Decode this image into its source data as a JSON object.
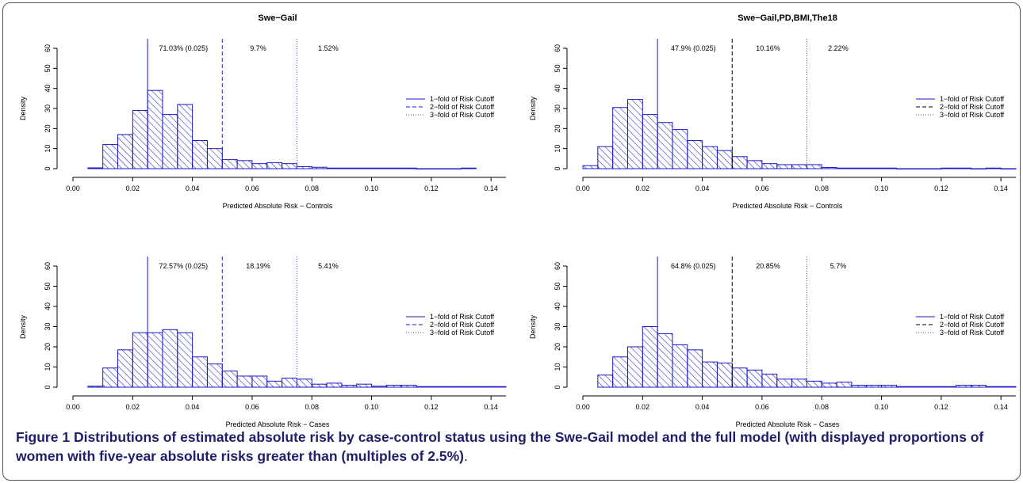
{
  "caption": {
    "label": "Figure 1",
    "text": "Distributions of estimated absolute risk by case-control status using the Swe-Gail model and the full model (with displayed proportions of women with five-year absolute risks greater than (multiples of 2.5%)",
    "end": "."
  },
  "colors": {
    "bars": "#1a1ac8",
    "cutoff_blue": "#1a1ac8",
    "cutoff_black": "#000000",
    "cutoff_purple": "#7040c0"
  },
  "chart_data": [
    {
      "type": "bar",
      "title": "Swe−Gail",
      "xlabel": "Predicted Absolute Risk − Controls",
      "ylabel": "Density",
      "xlim": [
        0,
        0.145
      ],
      "ylim": [
        0,
        60
      ],
      "xticks": [
        "0.00",
        "0.02",
        "0.04",
        "0.06",
        "0.08",
        "0.10",
        "0.12",
        "0.14"
      ],
      "yticks": [
        "0",
        "10",
        "20",
        "30",
        "40",
        "50",
        "60"
      ],
      "bin_width": 0.005,
      "bin_start": 0.005,
      "values": [
        0.4,
        12,
        17,
        29,
        39,
        27,
        32,
        14,
        10,
        4.5,
        4,
        2.5,
        3,
        2.5,
        1,
        0.7,
        0.3,
        0.3,
        0.3,
        0.3,
        0.3,
        0.3,
        0,
        0,
        0,
        0.3
      ],
      "cutoffs": [
        {
          "x": 0.025,
          "style": "solid",
          "color": "blue",
          "label": "71.03% (0.025)"
        },
        {
          "x": 0.05,
          "style": "dashed",
          "color": "blue",
          "label": "9.7%"
        },
        {
          "x": 0.075,
          "style": "dotted",
          "color": "purple",
          "label": "1.52%"
        }
      ],
      "legend": [
        "1−fold of Risk Cutoff",
        "2−fold of Risk Cutoff",
        "3−fold of Risk Cutoff"
      ],
      "legend_position": "right",
      "grid": false
    },
    {
      "type": "bar",
      "title": "Swe−Gail,PD,BMI,The18",
      "xlabel": "Predicted Absolute Risk − Controls",
      "ylabel": "Density",
      "xlim": [
        0,
        0.145
      ],
      "ylim": [
        0,
        60
      ],
      "xticks": [
        "0.00",
        "0.02",
        "0.04",
        "0.06",
        "0.08",
        "0.10",
        "0.12",
        "0.14"
      ],
      "yticks": [
        "0",
        "10",
        "20",
        "30",
        "40",
        "50",
        "60"
      ],
      "bin_width": 0.005,
      "bin_start": 0,
      "values": [
        1.5,
        11,
        30.5,
        34.5,
        27,
        23,
        19.5,
        14,
        11,
        9,
        6,
        4,
        2.5,
        2,
        2,
        2,
        0.6,
        0.3,
        0.3,
        0.3,
        0.3,
        0,
        0,
        0,
        0.3,
        0.3,
        0,
        0.3,
        0,
        0.3
      ],
      "cutoffs": [
        {
          "x": 0.025,
          "style": "solid",
          "color": "blue",
          "label": "47.9% (0.025)"
        },
        {
          "x": 0.05,
          "style": "dashed",
          "color": "black",
          "label": "10.16%"
        },
        {
          "x": 0.075,
          "style": "dotted",
          "color": "purple",
          "label": "2.22%"
        }
      ],
      "legend": [
        "1−fold of Risk Cutoff",
        "2−fold of Risk Cutoff",
        "3−fold of Risk Cutoff"
      ],
      "legend_position": "right",
      "grid": false
    },
    {
      "type": "bar",
      "title": "",
      "xlabel": "Predicted Absolute Risk − Cases",
      "ylabel": "Density",
      "xlim": [
        0,
        0.145
      ],
      "ylim": [
        0,
        60
      ],
      "xticks": [
        "0.00",
        "0.02",
        "0.04",
        "0.06",
        "0.08",
        "0.10",
        "0.12",
        "0.14"
      ],
      "yticks": [
        "0",
        "10",
        "20",
        "30",
        "40",
        "50",
        "60"
      ],
      "bin_width": 0.005,
      "bin_start": 0.005,
      "values": [
        0.5,
        9.5,
        18.5,
        27,
        27,
        28.5,
        27,
        15,
        11.5,
        8,
        5.5,
        5.5,
        3,
        4.5,
        4,
        1.5,
        2,
        1,
        1.5,
        0.5,
        1,
        1,
        0.3,
        0.3,
        0.3,
        0.3,
        0.3,
        0.3
      ],
      "cutoffs": [
        {
          "x": 0.025,
          "style": "solid",
          "color": "blue",
          "label": "72.57% (0.025)"
        },
        {
          "x": 0.05,
          "style": "dashed",
          "color": "blue",
          "label": "18.19%"
        },
        {
          "x": 0.075,
          "style": "dotted",
          "color": "purple",
          "label": "5.41%"
        }
      ],
      "legend": [
        "1−fold of Risk Cutoff",
        "2−fold of Risk Cutoff",
        "3−fold of Risk Cutoff"
      ],
      "legend_position": "right",
      "grid": false
    },
    {
      "type": "bar",
      "title": "",
      "xlabel": "Predicted Absolute Risk − Cases",
      "ylabel": "Density",
      "xlim": [
        0,
        0.145
      ],
      "ylim": [
        0,
        60
      ],
      "xticks": [
        "0.00",
        "0.02",
        "0.04",
        "0.06",
        "0.08",
        "0.10",
        "0.12",
        "0.14"
      ],
      "yticks": [
        "0",
        "10",
        "20",
        "30",
        "40",
        "50",
        "60"
      ],
      "bin_width": 0.005,
      "bin_start": 0.005,
      "values": [
        6,
        15,
        20,
        30,
        26.5,
        21,
        18.5,
        12.5,
        12,
        9.5,
        8.5,
        6.5,
        4,
        4,
        3,
        2,
        2.5,
        1,
        1,
        1,
        0.3,
        0.3,
        0.3,
        0.3,
        1,
        1,
        0.3,
        0.3
      ],
      "cutoffs": [
        {
          "x": 0.025,
          "style": "solid",
          "color": "blue",
          "label": "64.8% (0.025)"
        },
        {
          "x": 0.05,
          "style": "dashed",
          "color": "black",
          "label": "20.85%"
        },
        {
          "x": 0.075,
          "style": "dotted",
          "color": "purple",
          "label": "5.7%"
        }
      ],
      "legend": [
        "1−fold of Risk Cutoff",
        "2−fold of Risk Cutoff",
        "3−fold of Risk Cutoff"
      ],
      "legend_position": "right",
      "grid": false
    }
  ]
}
